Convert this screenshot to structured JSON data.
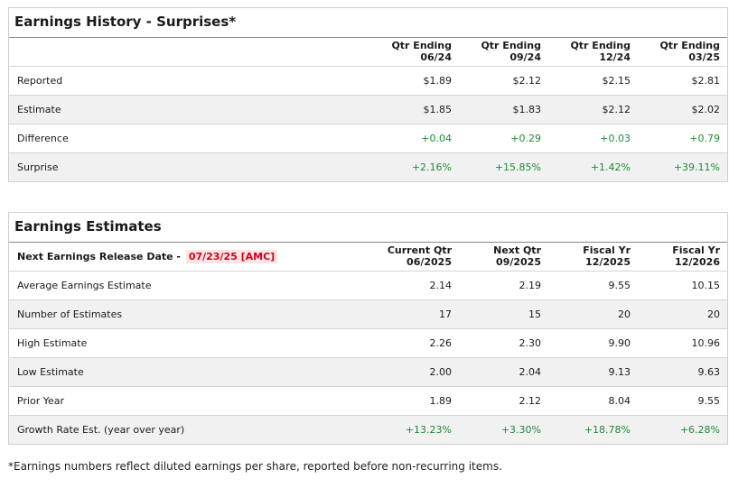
{
  "history": {
    "title": "Earnings History - Surprises*",
    "columns": [
      {
        "line1": "Qtr Ending",
        "line2": "06/24"
      },
      {
        "line1": "Qtr Ending",
        "line2": "09/24"
      },
      {
        "line1": "Qtr Ending",
        "line2": "12/24"
      },
      {
        "line1": "Qtr Ending",
        "line2": "03/25"
      }
    ],
    "rows": [
      {
        "label": "Reported",
        "values": [
          "$1.89",
          "$2.12",
          "$2.15",
          "$2.81"
        ]
      },
      {
        "label": "Estimate",
        "values": [
          "$1.85",
          "$1.83",
          "$2.12",
          "$2.02"
        ]
      },
      {
        "label": "Difference",
        "values": [
          "+0.04",
          "+0.29",
          "+0.03",
          "+0.79"
        ]
      },
      {
        "label": "Surprise",
        "values": [
          "+2.16%",
          "+15.85%",
          "+1.42%",
          "+39.11%"
        ]
      }
    ]
  },
  "estimates": {
    "title": "Earnings Estimates",
    "release_label": "Next Earnings Release Date -",
    "release_date": "07/23/25 [AMC]",
    "columns": [
      {
        "line1": "Current Qtr",
        "line2": "06/2025"
      },
      {
        "line1": "Next Qtr",
        "line2": "09/2025"
      },
      {
        "line1": "Fiscal Yr",
        "line2": "12/2025"
      },
      {
        "line1": "Fiscal Yr",
        "line2": "12/2026"
      }
    ],
    "rows": [
      {
        "label": "Average Earnings Estimate",
        "values": [
          "2.14",
          "2.19",
          "9.55",
          "10.15"
        ]
      },
      {
        "label": "Number of Estimates",
        "values": [
          "17",
          "15",
          "20",
          "20"
        ]
      },
      {
        "label": "High Estimate",
        "values": [
          "2.26",
          "2.30",
          "9.90",
          "10.96"
        ]
      },
      {
        "label": "Low Estimate",
        "values": [
          "2.00",
          "2.04",
          "9.13",
          "9.63"
        ]
      },
      {
        "label": "Prior Year",
        "values": [
          "1.89",
          "2.12",
          "8.04",
          "9.55"
        ]
      },
      {
        "label": "Growth Rate Est. (year over year)",
        "values": [
          "+13.23%",
          "+3.30%",
          "+18.78%",
          "+6.28%"
        ]
      }
    ]
  },
  "footnote": "*Earnings numbers reflect diluted earnings per share, reported before non-recurring items.",
  "colors": {
    "positive": "#1f8a3a",
    "release_date_text": "#d0021b",
    "release_date_bg": "#fbe5e5"
  }
}
